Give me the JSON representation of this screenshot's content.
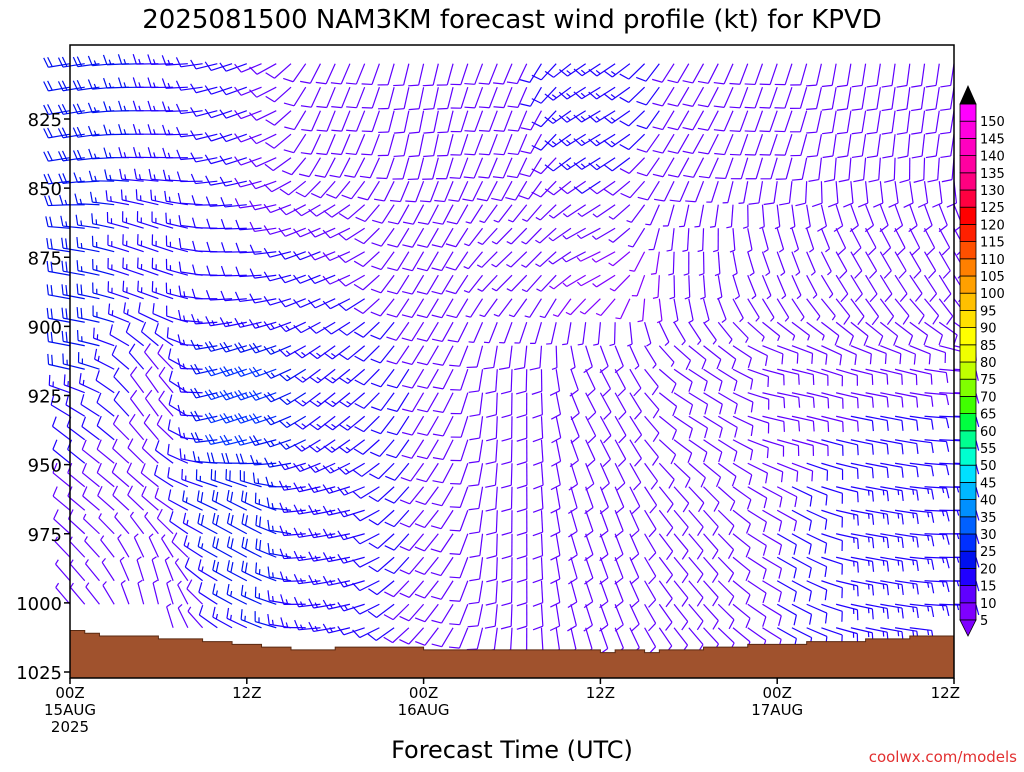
{
  "chart_data": {
    "type": "wind-barb-time-height",
    "title": "2025081500 NAM3KM forecast wind profile (kt) for KPVD",
    "xlabel": "Forecast Time (UTC)",
    "ylabel": "",
    "watermark": "coolwx.com/models",
    "x_range_hours": [
      0,
      60
    ],
    "x_ticks": [
      {
        "hour": 0,
        "l1": "00Z",
        "l2": "15AUG",
        "l3": "2025"
      },
      {
        "hour": 12,
        "l1": "12Z",
        "l2": "",
        "l3": ""
      },
      {
        "hour": 24,
        "l1": "00Z",
        "l2": "16AUG",
        "l3": ""
      },
      {
        "hour": 36,
        "l1": "12Z",
        "l2": "",
        "l3": ""
      },
      {
        "hour": 48,
        "l1": "00Z",
        "l2": "17AUG",
        "l3": ""
      },
      {
        "hour": 60,
        "l1": "12Z",
        "l2": "",
        "l3": ""
      }
    ],
    "y_range_hpa": [
      800,
      1025
    ],
    "y_ticks": [
      825,
      850,
      875,
      900,
      925,
      950,
      975,
      1000,
      1025
    ],
    "ground_surface_hpa": [
      [
        0,
        1010
      ],
      [
        1,
        1011
      ],
      [
        2,
        1012
      ],
      [
        6,
        1013
      ],
      [
        9,
        1014
      ],
      [
        11,
        1015
      ],
      [
        13,
        1016
      ],
      [
        15,
        1017
      ],
      [
        18,
        1016
      ],
      [
        21,
        1016
      ],
      [
        24,
        1017
      ],
      [
        27,
        1017
      ],
      [
        30,
        1017
      ],
      [
        35,
        1017
      ],
      [
        36,
        1018
      ],
      [
        37,
        1017
      ],
      [
        39,
        1018
      ],
      [
        40,
        1017
      ],
      [
        43,
        1016
      ],
      [
        46,
        1015
      ],
      [
        50,
        1014
      ],
      [
        54,
        1013
      ],
      [
        57,
        1012
      ],
      [
        60,
        1012
      ]
    ],
    "wind_samples": [
      {
        "hour": 0,
        "hpa": 825,
        "dir": 260,
        "spd": 20
      },
      {
        "hour": 0,
        "hpa": 900,
        "dir": 280,
        "spd": 20
      },
      {
        "hour": 0,
        "hpa": 950,
        "dir": 310,
        "spd": 10
      },
      {
        "hour": 0,
        "hpa": 1000,
        "dir": 320,
        "spd": 5
      },
      {
        "hour": 6,
        "hpa": 825,
        "dir": 270,
        "spd": 15
      },
      {
        "hour": 6,
        "hpa": 875,
        "dir": 290,
        "spd": 15
      },
      {
        "hour": 6,
        "hpa": 925,
        "dir": 330,
        "spd": 10
      },
      {
        "hour": 6,
        "hpa": 1000,
        "dir": 350,
        "spd": 5
      },
      {
        "hour": 12,
        "hpa": 825,
        "dir": 250,
        "spd": 10
      },
      {
        "hour": 12,
        "hpa": 875,
        "dir": 270,
        "spd": 10
      },
      {
        "hour": 12,
        "hpa": 925,
        "dir": 250,
        "spd": 25
      },
      {
        "hour": 12,
        "hpa": 975,
        "dir": 300,
        "spd": 20
      },
      {
        "hour": 18,
        "hpa": 825,
        "dir": 200,
        "spd": 10
      },
      {
        "hour": 18,
        "hpa": 875,
        "dir": 250,
        "spd": 10
      },
      {
        "hour": 18,
        "hpa": 925,
        "dir": 230,
        "spd": 15
      },
      {
        "hour": 18,
        "hpa": 975,
        "dir": 260,
        "spd": 15
      },
      {
        "hour": 24,
        "hpa": 825,
        "dir": 190,
        "spd": 10
      },
      {
        "hour": 24,
        "hpa": 875,
        "dir": 210,
        "spd": 10
      },
      {
        "hour": 24,
        "hpa": 925,
        "dir": 210,
        "spd": 10
      },
      {
        "hour": 24,
        "hpa": 975,
        "dir": 220,
        "spd": 10
      },
      {
        "hour": 30,
        "hpa": 825,
        "dir": 200,
        "spd": 10
      },
      {
        "hour": 30,
        "hpa": 875,
        "dir": 230,
        "spd": 5
      },
      {
        "hour": 30,
        "hpa": 925,
        "dir": 180,
        "spd": 10
      },
      {
        "hour": 30,
        "hpa": 975,
        "dir": 180,
        "spd": 10
      },
      {
        "hour": 36,
        "hpa": 825,
        "dir": 240,
        "spd": 15
      },
      {
        "hour": 36,
        "hpa": 875,
        "dir": 250,
        "spd": 5
      },
      {
        "hour": 36,
        "hpa": 925,
        "dir": 150,
        "spd": 10
      },
      {
        "hour": 36,
        "hpa": 975,
        "dir": 160,
        "spd": 10
      },
      {
        "hour": 42,
        "hpa": 825,
        "dir": 210,
        "spd": 10
      },
      {
        "hour": 42,
        "hpa": 875,
        "dir": 180,
        "spd": 5
      },
      {
        "hour": 42,
        "hpa": 925,
        "dir": 120,
        "spd": 10
      },
      {
        "hour": 42,
        "hpa": 975,
        "dir": 140,
        "spd": 10
      },
      {
        "hour": 48,
        "hpa": 825,
        "dir": 200,
        "spd": 10
      },
      {
        "hour": 48,
        "hpa": 875,
        "dir": 160,
        "spd": 5
      },
      {
        "hour": 48,
        "hpa": 925,
        "dir": 100,
        "spd": 10
      },
      {
        "hour": 48,
        "hpa": 975,
        "dir": 120,
        "spd": 10
      },
      {
        "hour": 54,
        "hpa": 825,
        "dir": 190,
        "spd": 10
      },
      {
        "hour": 54,
        "hpa": 875,
        "dir": 150,
        "spd": 10
      },
      {
        "hour": 54,
        "hpa": 925,
        "dir": 100,
        "spd": 10
      },
      {
        "hour": 54,
        "hpa": 975,
        "dir": 100,
        "spd": 15
      },
      {
        "hour": 60,
        "hpa": 825,
        "dir": 190,
        "spd": 10
      },
      {
        "hour": 60,
        "hpa": 875,
        "dir": 150,
        "spd": 10
      },
      {
        "hour": 60,
        "hpa": 925,
        "dir": 90,
        "spd": 10
      },
      {
        "hour": 60,
        "hpa": 975,
        "dir": 90,
        "spd": 15
      }
    ],
    "colorbar": {
      "levels": [
        5,
        10,
        15,
        20,
        25,
        30,
        35,
        40,
        45,
        50,
        55,
        60,
        65,
        70,
        75,
        80,
        85,
        90,
        95,
        100,
        105,
        110,
        115,
        120,
        125,
        130,
        135,
        140,
        145,
        150
      ],
      "colors": [
        "#7f00ff",
        "#6000ff",
        "#2000ff",
        "#0010f0",
        "#0030ff",
        "#0060ff",
        "#0090ff",
        "#00b8ff",
        "#00e0ff",
        "#00ffd0",
        "#00ff90",
        "#00ff40",
        "#40ff00",
        "#80ff00",
        "#c0ff00",
        "#f0ff00",
        "#ffff00",
        "#ffe000",
        "#ffc000",
        "#ffa000",
        "#ff8000",
        "#ff5000",
        "#ff2000",
        "#ff0000",
        "#ff0040",
        "#ff0080",
        "#ff00a0",
        "#ff00c0",
        "#ff00e0",
        "#ff00ff"
      ],
      "low_arrow_color": "#7f00ff",
      "high_arrow_color": "#000000"
    },
    "ground_color": "#a0522d",
    "barb_color_default": "#8000ff"
  }
}
